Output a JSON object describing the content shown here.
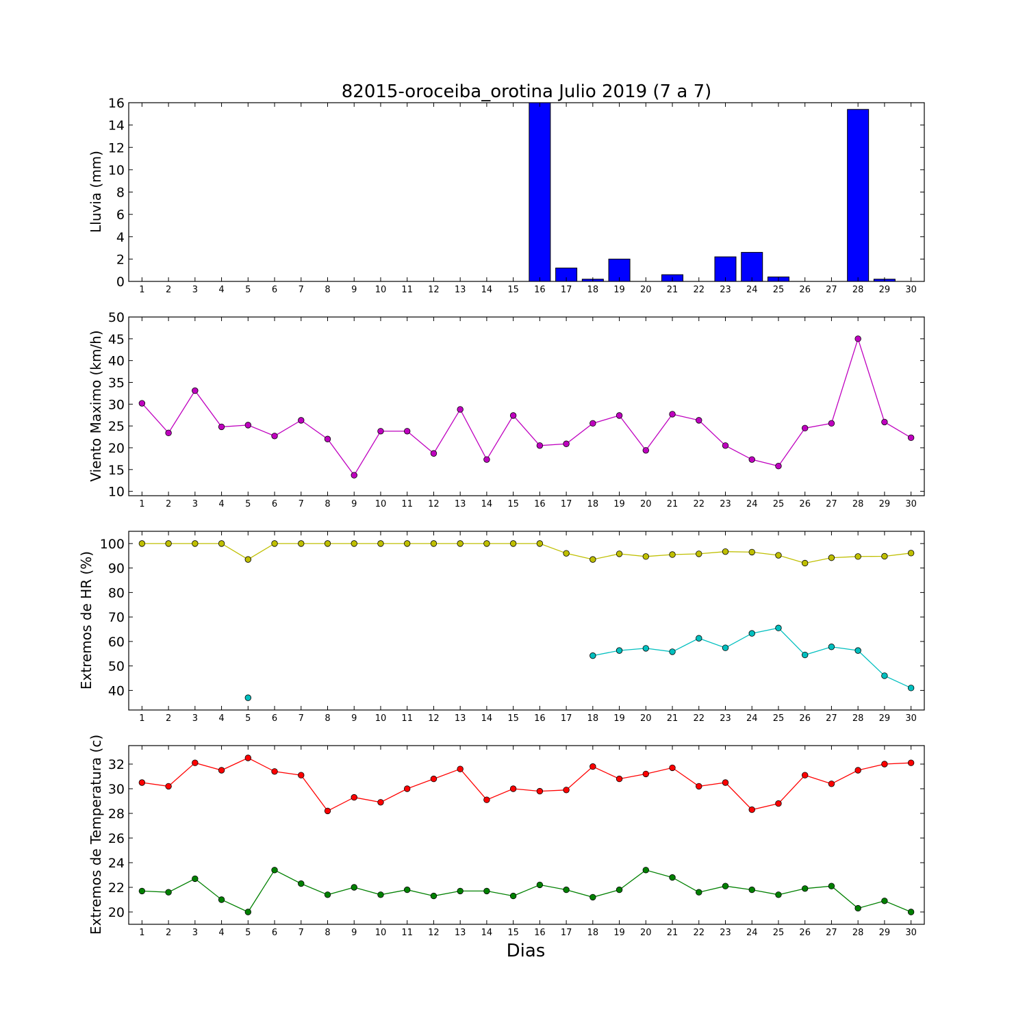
{
  "figure": {
    "title": "82015-oroceiba_orotina Julio 2019  (7 a 7)",
    "xlabel": "Dias"
  },
  "chart_data": [
    {
      "type": "bar",
      "ylabel": "Lluvia (mm)",
      "ylim": [
        0,
        16
      ],
      "yticks": [
        0,
        2,
        4,
        6,
        8,
        10,
        12,
        14,
        16
      ],
      "categories": [
        1,
        2,
        3,
        4,
        5,
        6,
        7,
        8,
        9,
        10,
        11,
        12,
        13,
        14,
        15,
        16,
        17,
        18,
        19,
        20,
        21,
        22,
        23,
        24,
        25,
        26,
        27,
        28,
        29,
        30
      ],
      "series": [
        {
          "color": "#0000ff",
          "values": [
            0,
            0,
            0,
            0,
            0,
            0,
            0,
            0,
            0,
            0,
            0,
            0,
            0,
            0,
            0,
            16.0,
            1.2,
            0.2,
            2.0,
            0,
            0.6,
            0,
            2.2,
            2.6,
            0.4,
            0,
            0,
            15.4,
            0.2,
            0
          ]
        }
      ],
      "grid": false
    },
    {
      "type": "line",
      "ylabel": "Viento Maximo (km/h)",
      "ylim": [
        9,
        50
      ],
      "yticks": [
        10,
        15,
        20,
        25,
        30,
        35,
        40,
        45,
        50
      ],
      "x": [
        1,
        2,
        3,
        4,
        5,
        6,
        7,
        8,
        9,
        10,
        11,
        12,
        13,
        14,
        15,
        16,
        17,
        18,
        19,
        20,
        21,
        22,
        23,
        24,
        25,
        26,
        27,
        28,
        29,
        30
      ],
      "series": [
        {
          "color": "#bf00bf",
          "values": [
            30.2,
            23.4,
            33.1,
            24.8,
            25.2,
            22.7,
            26.3,
            22.0,
            13.7,
            23.8,
            23.8,
            18.7,
            28.8,
            17.3,
            27.4,
            20.5,
            20.9,
            25.6,
            27.4,
            19.4,
            27.7,
            26.3,
            20.5,
            17.3,
            15.8,
            24.5,
            25.6,
            45.0,
            25.9,
            22.3
          ]
        }
      ],
      "grid": false
    },
    {
      "type": "line",
      "ylabel": "Extremos de HR (%)",
      "ylim": [
        32,
        105
      ],
      "yticks": [
        40,
        50,
        60,
        70,
        80,
        90,
        100
      ],
      "x": [
        1,
        2,
        3,
        4,
        5,
        6,
        7,
        8,
        9,
        10,
        11,
        12,
        13,
        14,
        15,
        16,
        17,
        18,
        19,
        20,
        21,
        22,
        23,
        24,
        25,
        26,
        27,
        28,
        29,
        30
      ],
      "series": [
        {
          "color": "#bfbf00",
          "values": [
            100,
            100,
            100,
            100,
            93.5,
            100,
            100,
            100,
            100,
            100,
            100,
            100,
            100,
            100,
            100,
            100,
            96,
            93.5,
            95.8,
            94.7,
            95.5,
            95.8,
            96.7,
            96.5,
            95.2,
            92,
            94.2,
            94.7,
            94.8,
            96.1
          ]
        },
        {
          "color": "#00bfbf",
          "values": [
            null,
            null,
            null,
            null,
            37,
            null,
            null,
            null,
            null,
            null,
            null,
            null,
            null,
            null,
            null,
            null,
            null,
            54.2,
            56.3,
            57.2,
            55.8,
            61.3,
            57.4,
            63.3,
            65.5,
            54.5,
            57.8,
            56.3,
            46,
            41
          ]
        }
      ],
      "grid": false
    },
    {
      "type": "line",
      "ylabel": "Extremos de Temperatura (c)",
      "ylim": [
        19,
        33.5
      ],
      "yticks": [
        20,
        22,
        24,
        26,
        28,
        30,
        32
      ],
      "x": [
        1,
        2,
        3,
        4,
        5,
        6,
        7,
        8,
        9,
        10,
        11,
        12,
        13,
        14,
        15,
        16,
        17,
        18,
        19,
        20,
        21,
        22,
        23,
        24,
        25,
        26,
        27,
        28,
        29,
        30
      ],
      "series": [
        {
          "color": "#ff0000",
          "values": [
            30.5,
            30.2,
            32.1,
            31.5,
            32.5,
            31.4,
            31.1,
            28.2,
            29.3,
            28.9,
            30.0,
            30.8,
            31.6,
            29.1,
            30.0,
            29.8,
            29.9,
            31.8,
            30.8,
            31.2,
            31.7,
            30.2,
            30.5,
            28.3,
            28.8,
            31.1,
            30.4,
            31.5,
            32.0,
            32.1
          ]
        },
        {
          "color": "#008000",
          "values": [
            21.7,
            21.6,
            22.7,
            21.0,
            20.0,
            23.4,
            22.3,
            21.4,
            22.0,
            21.4,
            21.8,
            21.3,
            21.7,
            21.7,
            21.3,
            22.2,
            21.8,
            21.2,
            21.8,
            23.4,
            22.8,
            21.6,
            22.1,
            21.8,
            21.4,
            21.9,
            22.1,
            20.3,
            20.9,
            20.0
          ]
        }
      ],
      "grid": false
    }
  ]
}
